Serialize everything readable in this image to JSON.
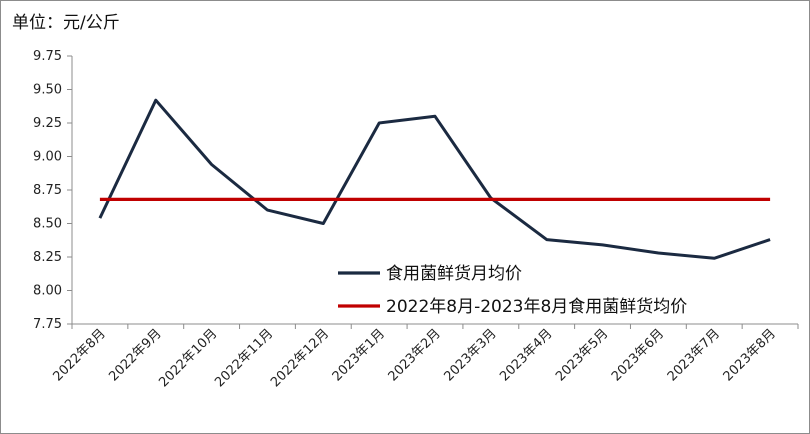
{
  "unit_label": "单位：元/公斤",
  "chart_data": {
    "type": "line",
    "title": "",
    "xlabel": "",
    "ylabel": "",
    "ylim": [
      7.75,
      9.75
    ],
    "yticks": [
      "7.75",
      "8.00",
      "8.25",
      "8.50",
      "8.75",
      "9.00",
      "9.25",
      "9.50",
      "9.75"
    ],
    "categories": [
      "2022年8月",
      "2022年9月",
      "2022年10月",
      "2022年11月",
      "2022年12月",
      "2023年1月",
      "2023年2月",
      "2023年3月",
      "2023年4月",
      "2023年5月",
      "2023年6月",
      "2023年7月",
      "2023年8月"
    ],
    "series": [
      {
        "name": "食用菌鲜货月均价",
        "color": "#1b2a41",
        "values": [
          8.54,
          9.42,
          8.94,
          8.6,
          8.5,
          9.25,
          9.3,
          8.69,
          8.38,
          8.34,
          8.28,
          8.24,
          8.38
        ]
      },
      {
        "name": "2022年8月-2023年8月食用菌鲜货均价",
        "color": "#c00000",
        "values": [
          8.68,
          8.68,
          8.68,
          8.68,
          8.68,
          8.68,
          8.68,
          8.68,
          8.68,
          8.68,
          8.68,
          8.68,
          8.68
        ]
      }
    ],
    "grid": false,
    "legend_position": "bottom-right-inside"
  }
}
